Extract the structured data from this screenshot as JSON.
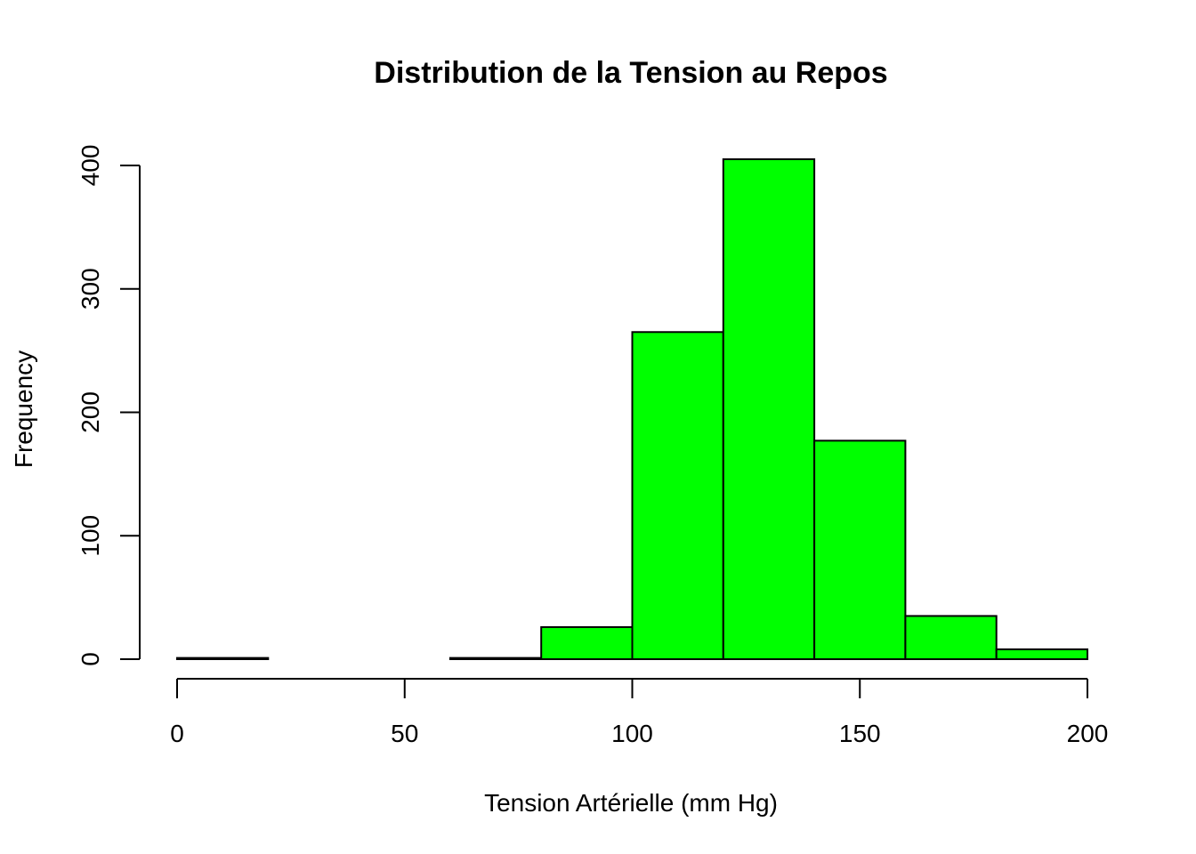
{
  "chart_data": {
    "type": "bar",
    "histogram": true,
    "title": "Distribution de la Tension au Repos",
    "xlabel": "Tension Artérielle (mm Hg)",
    "ylabel": "Frequency",
    "bins": [
      {
        "start": 0,
        "end": 20,
        "count": 1
      },
      {
        "start": 20,
        "end": 40,
        "count": 0
      },
      {
        "start": 40,
        "end": 60,
        "count": 0
      },
      {
        "start": 60,
        "end": 80,
        "count": 1
      },
      {
        "start": 80,
        "end": 100,
        "count": 26
      },
      {
        "start": 100,
        "end": 120,
        "count": 265
      },
      {
        "start": 120,
        "end": 140,
        "count": 405
      },
      {
        "start": 140,
        "end": 160,
        "count": 177
      },
      {
        "start": 160,
        "end": 180,
        "count": 35
      },
      {
        "start": 180,
        "end": 200,
        "count": 8
      }
    ],
    "xlim": [
      0,
      200
    ],
    "ylim": [
      0,
      405
    ],
    "x_ticks": [
      0,
      50,
      100,
      150,
      200
    ],
    "y_ticks": [
      0,
      100,
      200,
      300,
      400
    ],
    "bar_color": "#00FF00",
    "bar_edge_color": "#000000",
    "grid": false,
    "legend": "none"
  }
}
